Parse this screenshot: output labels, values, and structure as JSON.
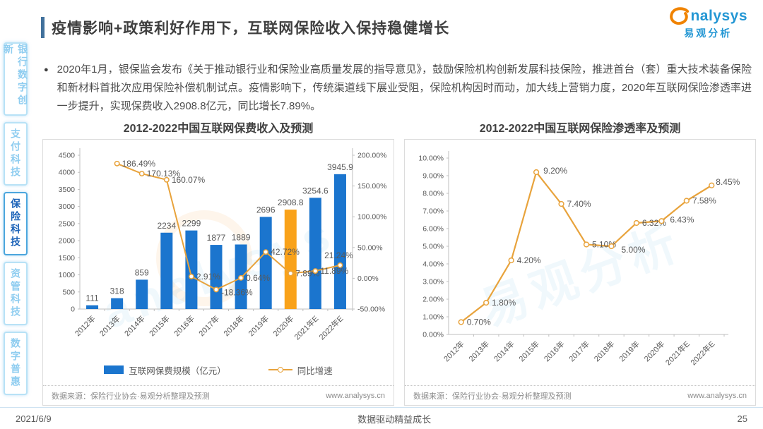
{
  "page": {
    "title": "疫情影响+政策利好作用下，互联网保险收入保持稳健增长",
    "logo": {
      "brand": "nalysys",
      "brand_cn": "易观分析"
    },
    "bullet": "2020年1月，银保监会发布《关于推动银行业和保险业高质量发展的指导意见》，鼓励保险机构创新发展科技保险，推进首台（套）重大技术装备保险和新材料首批次应用保险补偿机制试点。疫情影响下，传统渠道线下展业受阻，保险机构因时而动，加大线上营销力度，2020年互联网保险渗透率进一步提升，实现保费收入2908.8亿元，同比增长7.89%。",
    "footer": {
      "date": "2021/6/9",
      "center": "数据驱动精益成长",
      "page_number": "25"
    }
  },
  "sidebar": {
    "items": [
      {
        "label": "银行数字创新",
        "active": false
      },
      {
        "label": "支付科技",
        "active": false
      },
      {
        "label": "保险科技",
        "active": true
      },
      {
        "label": "资管科技",
        "active": false
      },
      {
        "label": "数字普惠",
        "active": false
      }
    ]
  },
  "charts_common": {
    "source_label": "数据来源：保险行业协会·易观分析整理及预测",
    "website": "www.analysys.cn"
  },
  "chart_data": [
    {
      "type": "bar",
      "title": "2012-2022中国互联网保费收入及预测",
      "categories": [
        "2012年",
        "2013年",
        "2014年",
        "2015年",
        "2016年",
        "2017年",
        "2018年",
        "2019年",
        "2020年",
        "2021年E",
        "2022年E"
      ],
      "series": [
        {
          "name": "互联网保费规模（亿元）",
          "type": "bar",
          "values": [
            111,
            318,
            859,
            2234,
            2299,
            1877,
            1889,
            2696,
            2908.8,
            3254.6,
            3945.9
          ],
          "labels": [
            "111",
            "318",
            "859",
            "2234",
            "2299",
            "1877",
            "1889",
            "2696",
            "2908.8",
            "3254.6",
            "3945.9"
          ]
        },
        {
          "name": "同比增速",
          "type": "line",
          "axis": "right",
          "values": [
            null,
            186.49,
            170.13,
            160.07,
            2.91,
            -18.36,
            0.64,
            42.72,
            7.89,
            11.89,
            21.24
          ],
          "labels": [
            null,
            "186.49%",
            "170.13%",
            "160.07%",
            "2.91%",
            "-18.36%",
            "0.64%",
            "42.72%",
            "7.89%",
            "11.89%",
            "21.24%"
          ]
        }
      ],
      "y_left": {
        "min": 0,
        "max": 4500,
        "step": 500
      },
      "y_right": {
        "min": -50,
        "max": 200,
        "step": 50,
        "suffix": "%"
      },
      "highlight_index": 8,
      "colors": {
        "bar": "#1b75ce",
        "bar_highlight": "#f9a21a",
        "line": "#e8a33c"
      },
      "legend_position": "bottom",
      "grid": false
    },
    {
      "type": "line",
      "title": "2012-2022中国互联网保险渗透率及预测",
      "categories": [
        "2012年",
        "2013年",
        "2014年",
        "2015年",
        "2016年",
        "2017年",
        "2018年",
        "2019年",
        "2020年",
        "2021年E",
        "2022年E"
      ],
      "values": [
        0.7,
        1.8,
        4.2,
        9.2,
        7.4,
        5.1,
        5.0,
        6.32,
        6.43,
        7.58,
        8.45
      ],
      "labels": [
        "0.70%",
        "1.80%",
        "4.20%",
        "9.20%",
        "7.40%",
        "5.10%",
        "5.00%",
        "6.32%",
        "6.43%",
        "7.58%",
        "8.45%"
      ],
      "ylim": [
        0,
        10
      ],
      "y_step": 1,
      "colors": {
        "line": "#e8a33c"
      },
      "grid": false
    }
  ]
}
